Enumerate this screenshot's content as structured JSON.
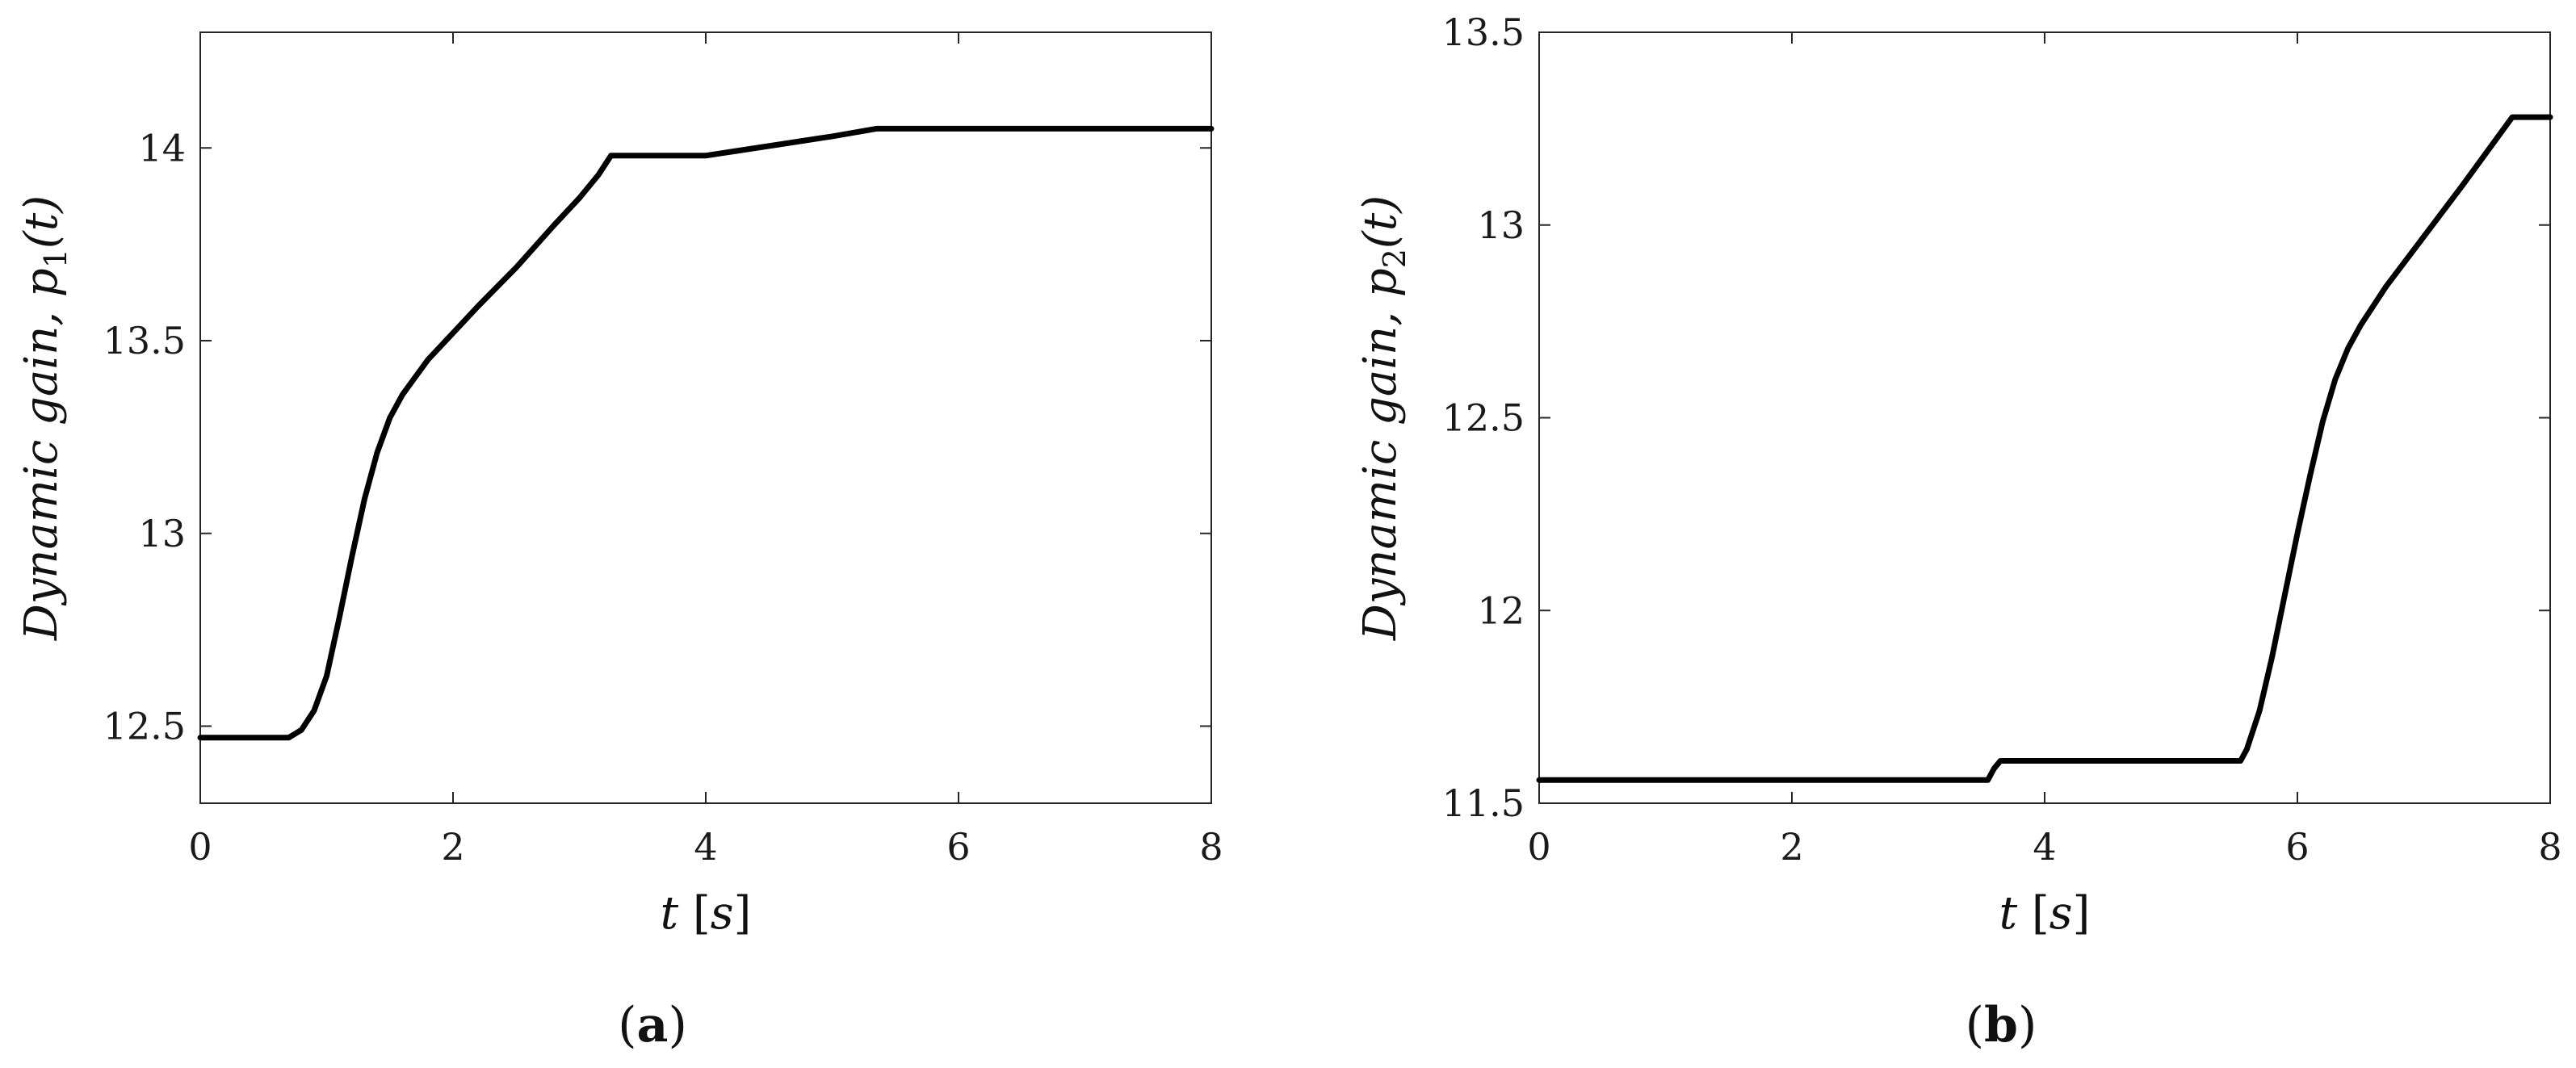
{
  "colors": {
    "line": "#000000",
    "axis": "#262626",
    "background": "#ffffff"
  },
  "chart_data": [
    {
      "type": "line",
      "panel_label": "a",
      "xlabel": {
        "var": "t",
        "unit": "s"
      },
      "ylabel": {
        "text": "Dynamic gain,",
        "sym": "p",
        "sub": "1",
        "arg": "(t)"
      },
      "xlim": [
        0,
        8
      ],
      "ylim": [
        12.3,
        14.3
      ],
      "xticks": [
        0,
        2,
        4,
        6,
        8
      ],
      "yticks": [
        12.5,
        13,
        13.5,
        14
      ],
      "xtick_labels": [
        "0",
        "2",
        "4",
        "6",
        "8"
      ],
      "ytick_labels": [
        "12.5",
        "13",
        "13.5",
        "14"
      ],
      "grid": false,
      "series": [
        {
          "x": [
            0,
            0.7,
            0.8,
            0.9,
            1.0,
            1.1,
            1.2,
            1.3,
            1.4,
            1.5,
            1.6,
            1.8,
            2.0,
            2.2,
            2.5,
            2.8,
            3.0,
            3.15,
            3.25,
            3.6,
            4.0,
            4.2,
            4.6,
            5.0,
            5.35,
            6,
            7,
            8
          ],
          "y": [
            12.47,
            12.47,
            12.49,
            12.54,
            12.63,
            12.78,
            12.94,
            13.09,
            13.21,
            13.3,
            13.36,
            13.45,
            13.52,
            13.59,
            13.69,
            13.8,
            13.87,
            13.93,
            13.98,
            13.98,
            13.98,
            13.99,
            14.01,
            14.03,
            14.05,
            14.05,
            14.05,
            14.05
          ]
        }
      ]
    },
    {
      "type": "line",
      "panel_label": "b",
      "xlabel": {
        "var": "t",
        "unit": "s"
      },
      "ylabel": {
        "text": "Dynamic gain,",
        "sym": "p",
        "sub": "2",
        "arg": "(t)"
      },
      "xlim": [
        0,
        8
      ],
      "ylim": [
        11.5,
        13.5
      ],
      "xticks": [
        0,
        2,
        4,
        6,
        8
      ],
      "yticks": [
        11.5,
        12,
        12.5,
        13,
        13.5
      ],
      "xtick_labels": [
        "0",
        "2",
        "4",
        "6",
        "8"
      ],
      "ytick_labels": [
        "11.5",
        "12",
        "12.5",
        "13",
        "13.5"
      ],
      "grid": false,
      "series": [
        {
          "x": [
            0,
            3.55,
            3.6,
            3.65,
            3.7,
            4.5,
            5.55,
            5.6,
            5.7,
            5.8,
            5.9,
            6.0,
            6.1,
            6.2,
            6.3,
            6.4,
            6.5,
            6.7,
            7.0,
            7.3,
            7.7,
            8.0
          ],
          "y": [
            11.56,
            11.56,
            11.59,
            11.61,
            11.61,
            11.61,
            11.61,
            11.64,
            11.74,
            11.88,
            12.04,
            12.2,
            12.35,
            12.49,
            12.6,
            12.68,
            12.74,
            12.84,
            12.97,
            13.1,
            13.28,
            13.28
          ]
        }
      ]
    }
  ]
}
